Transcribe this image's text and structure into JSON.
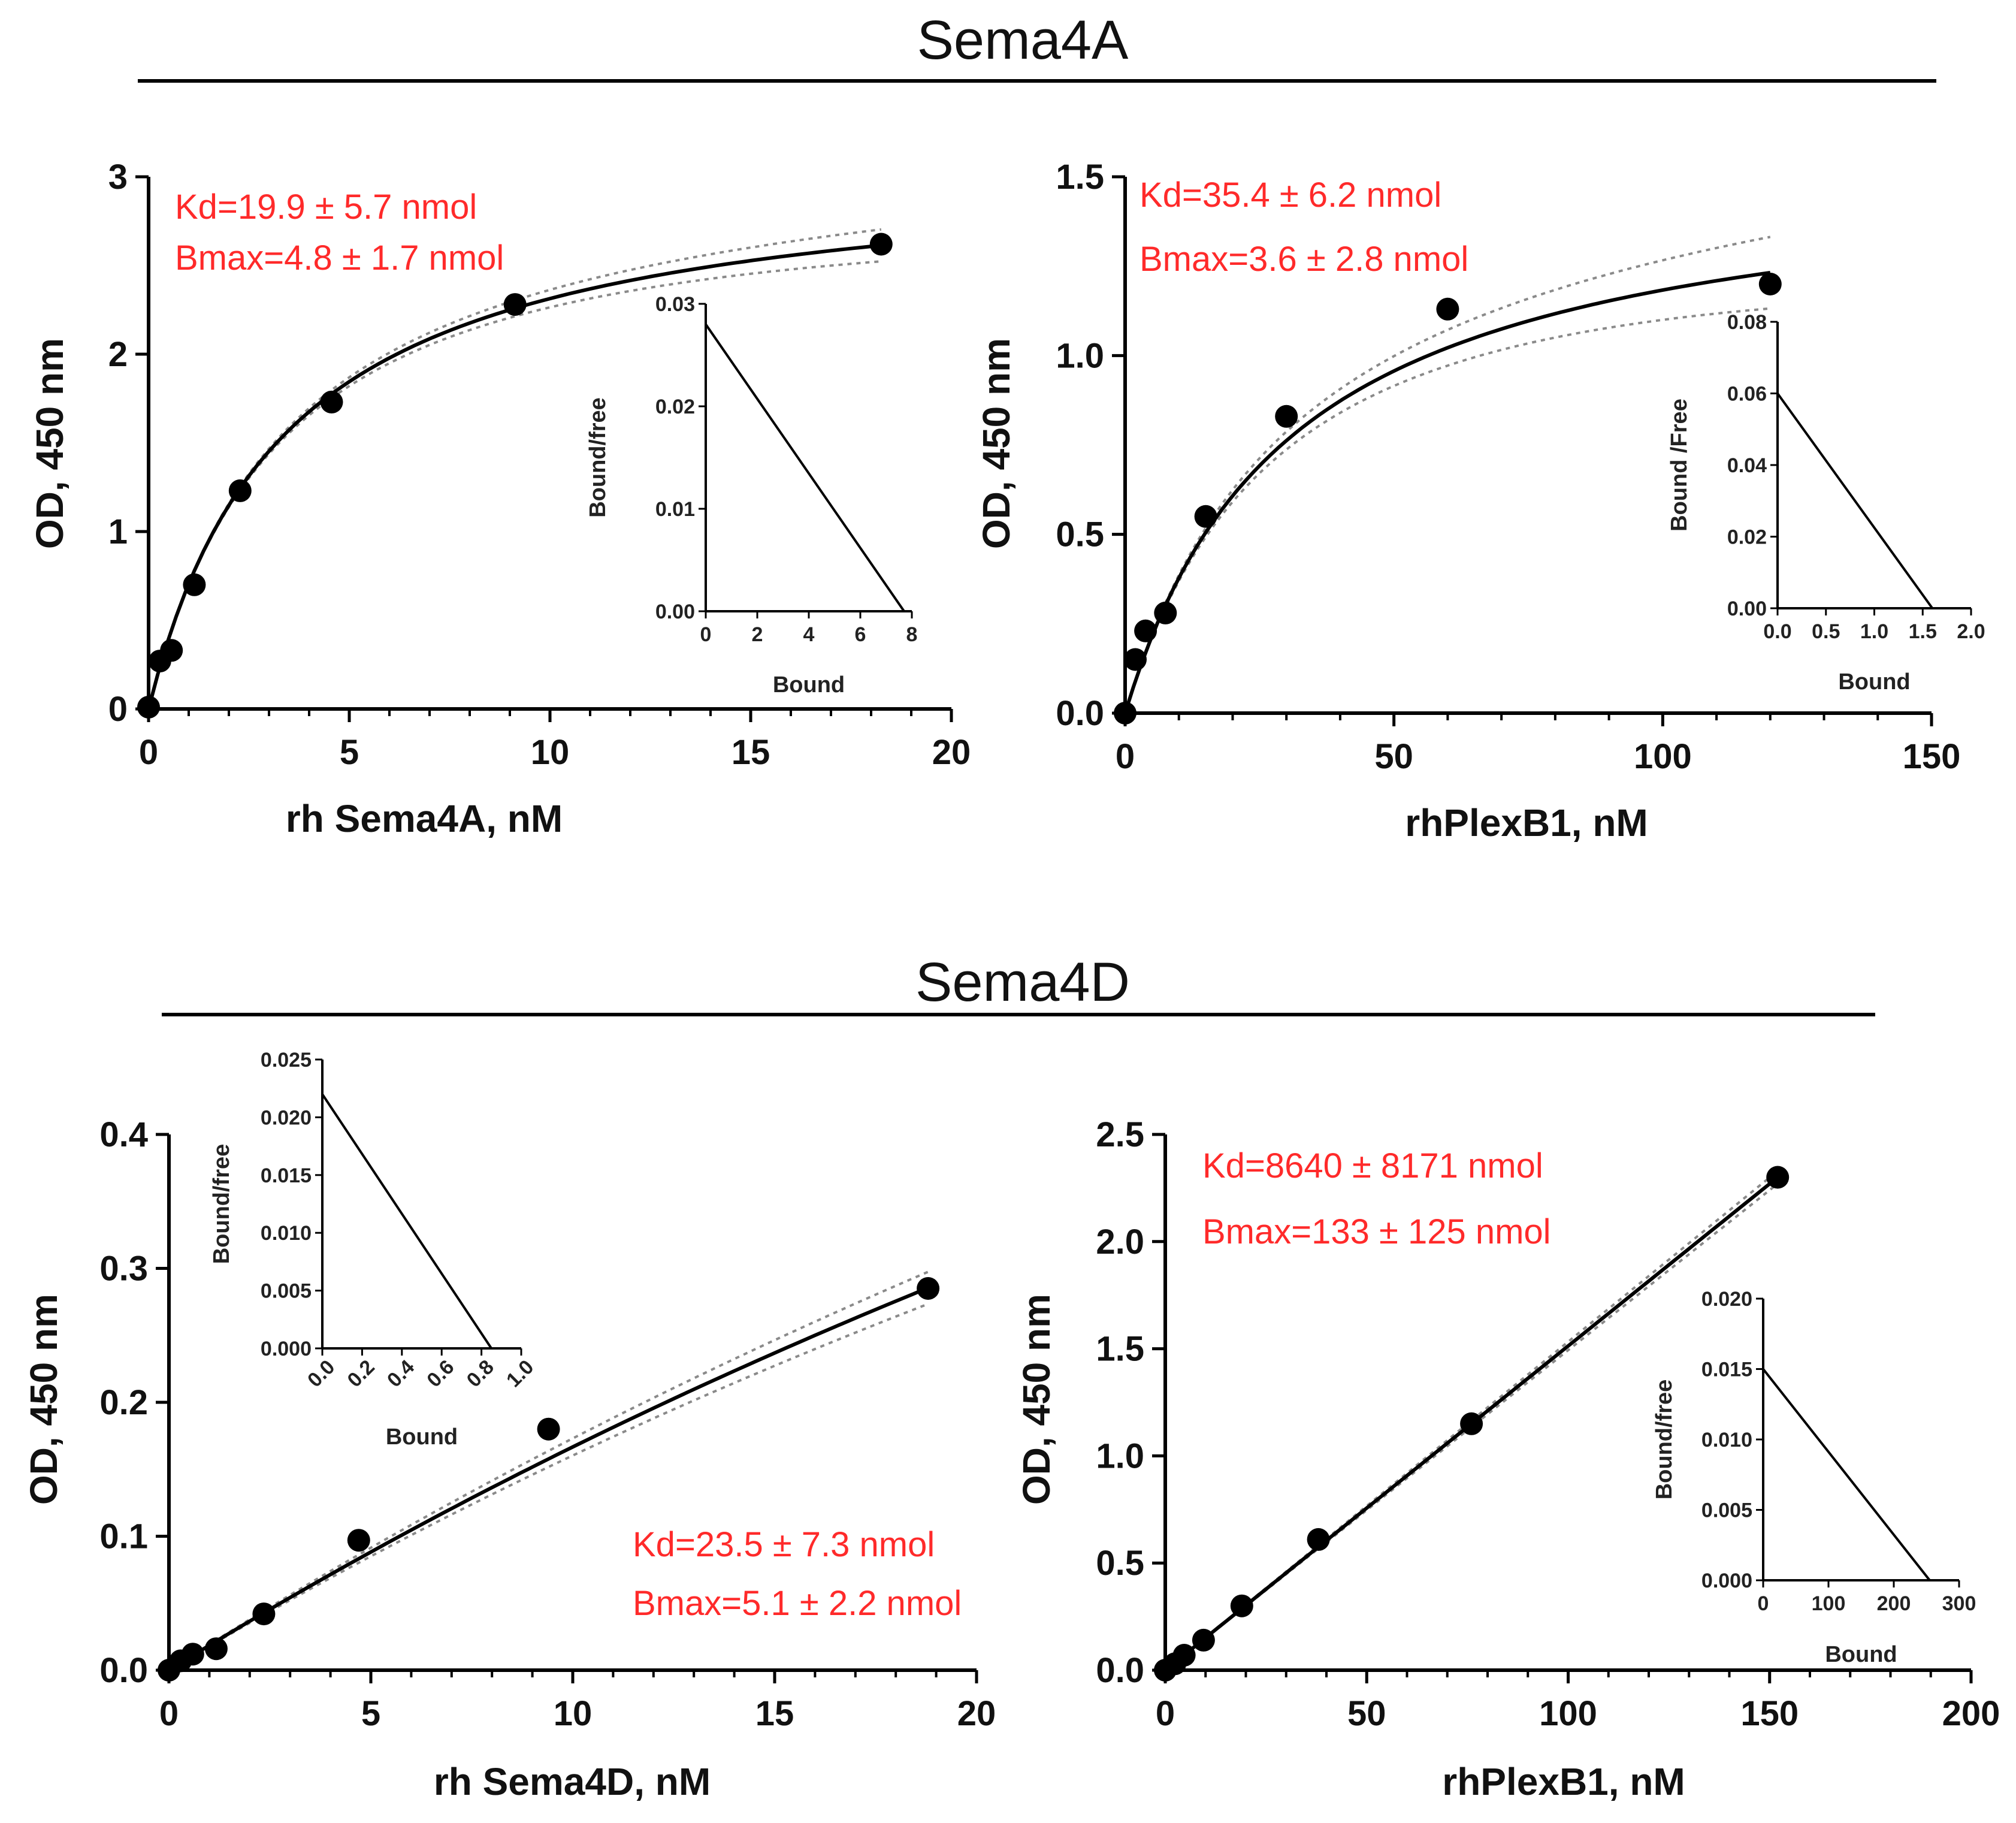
{
  "sections": [
    {
      "title": "Sema4A"
    },
    {
      "title": "Sema4D"
    }
  ],
  "chart_data": [
    {
      "type": "scatter",
      "panel": "sema4a-left",
      "xlabel": "rh Sema4A, nM",
      "ylabel": "OD, 450 nm",
      "xlim": [
        0,
        20
      ],
      "ylim": [
        0,
        3
      ],
      "xticks": [
        0,
        5,
        10,
        15,
        20
      ],
      "xticklabels": [
        "0",
        "5",
        "10",
        "15",
        "20"
      ],
      "yticks": [
        0,
        1,
        2,
        3
      ],
      "yticklabels": [
        "0",
        "1",
        "2",
        "3"
      ],
      "x": [
        0,
        0.28,
        0.57,
        1.14,
        2.28,
        4.56,
        9.13,
        18.25
      ],
      "y": [
        0.01,
        0.27,
        0.33,
        0.7,
        1.23,
        1.73,
        2.28,
        2.62
      ],
      "fit": {
        "model": "one-site specific binding",
        "Bmax": 3.1,
        "Kd": 3.4,
        "band": 0.09
      },
      "annotations": [
        "Kd=19.9 ± 5.7 nmol",
        "Bmax=4.8 ± 1.7 nmol"
      ],
      "inset": {
        "type": "line",
        "xlabel": "Bound",
        "ylabel": "Bound/free",
        "xlim": [
          0,
          8
        ],
        "ylim": [
          0,
          0.03
        ],
        "xticks": [
          0,
          2,
          4,
          6,
          8
        ],
        "xticklabels": [
          "0",
          "2",
          "4",
          "6",
          "8"
        ],
        "yticks": [
          0,
          0.01,
          0.02,
          0.03
        ],
        "yticklabels": [
          "0.00",
          "0.01",
          "0.02",
          "0.03"
        ],
        "line": [
          [
            0,
            0.028
          ],
          [
            7.7,
            0
          ]
        ]
      }
    },
    {
      "type": "scatter",
      "panel": "sema4a-right",
      "xlabel": "rhPlexB1, nM",
      "ylabel": "OD, 450 nm",
      "xlim": [
        0,
        150
      ],
      "ylim": [
        0,
        1.5
      ],
      "xticks": [
        0,
        50,
        100,
        150
      ],
      "xticklabels": [
        "0",
        "50",
        "100",
        "150"
      ],
      "yticks": [
        0,
        0.5,
        1.0,
        1.5
      ],
      "yticklabels": [
        "0.0",
        "0.5",
        "1.0",
        "1.5"
      ],
      "x": [
        0,
        1.9,
        3.8,
        7.5,
        15,
        30,
        60,
        120
      ],
      "y": [
        0.0,
        0.15,
        0.23,
        0.28,
        0.55,
        0.83,
        1.13,
        1.2
      ],
      "fit": {
        "model": "one-site specific binding",
        "Bmax": 1.55,
        "Kd": 31,
        "band": 0.1
      },
      "annotations": [
        "Kd=35.4 ± 6.2 nmol",
        "Bmax=3.6 ± 2.8 nmol"
      ],
      "inset": {
        "type": "line",
        "xlabel": "Bound",
        "ylabel": "Bound /Free",
        "xlim": [
          0,
          2
        ],
        "ylim": [
          0,
          0.08
        ],
        "xticks": [
          0,
          0.5,
          1.0,
          1.5,
          2.0
        ],
        "xticklabels": [
          "0.0",
          "0.5",
          "1.0",
          "1.5",
          "2.0"
        ],
        "yticks": [
          0,
          0.02,
          0.04,
          0.06,
          0.08
        ],
        "yticklabels": [
          "0.00",
          "0.02",
          "0.04",
          "0.06",
          "0.08"
        ],
        "line": [
          [
            0,
            0.06
          ],
          [
            1.6,
            0
          ]
        ]
      }
    },
    {
      "type": "scatter",
      "panel": "sema4d-left",
      "xlabel": "rh Sema4D, nM",
      "ylabel": "OD, 450 nm",
      "xlim": [
        0,
        20
      ],
      "ylim": [
        0,
        0.4
      ],
      "xticks": [
        0,
        5,
        10,
        15,
        20
      ],
      "xticklabels": [
        "0",
        "5",
        "10",
        "15",
        "20"
      ],
      "yticks": [
        0,
        0.1,
        0.2,
        0.3,
        0.4
      ],
      "yticklabels": [
        "0.0",
        "0.1",
        "0.2",
        "0.3",
        "0.4"
      ],
      "x": [
        0,
        0.29,
        0.59,
        1.17,
        2.35,
        4.7,
        9.4,
        18.8
      ],
      "y": [
        0.0,
        0.007,
        0.012,
        0.016,
        0.042,
        0.097,
        0.18,
        0.285
      ],
      "fit": {
        "model": "one-site specific binding",
        "Bmax": 1.5,
        "Kd": 80,
        "band": 0.012
      },
      "annotations": [
        "Kd=23.5 ± 7.3 nmol",
        "Bmax=5.1 ± 2.2 nmol"
      ],
      "inset": {
        "type": "line",
        "xlabel": "Bound",
        "ylabel": "Bound/free",
        "xlim": [
          0,
          1
        ],
        "ylim": [
          0,
          0.025
        ],
        "xticks": [
          0,
          0.2,
          0.4,
          0.6,
          0.8,
          1.0
        ],
        "xticklabels": [
          "0.0",
          "0.2",
          "0.4",
          "0.6",
          "0.8",
          "1.0"
        ],
        "yticks": [
          0,
          0.005,
          0.01,
          0.015,
          0.02,
          0.025
        ],
        "yticklabels": [
          "0.000",
          "0.005",
          "0.010",
          "0.015",
          "0.020",
          "0.025"
        ],
        "line": [
          [
            0,
            0.022
          ],
          [
            0.85,
            0
          ]
        ]
      }
    },
    {
      "type": "scatter",
      "panel": "sema4d-right",
      "xlabel": "rhPlexB1, nM",
      "ylabel": "OD, 450 nm",
      "xlim": [
        0,
        200
      ],
      "ylim": [
        0,
        2.5
      ],
      "xticks": [
        0,
        50,
        100,
        150,
        200
      ],
      "xticklabels": [
        "0",
        "50",
        "100",
        "150",
        "200"
      ],
      "yticks": [
        0,
        0.5,
        1.0,
        1.5,
        2.0,
        2.5
      ],
      "yticklabels": [
        "0.0",
        "0.5",
        "1.0",
        "1.5",
        "2.0",
        "2.5"
      ],
      "x": [
        0,
        2.4,
        4.7,
        9.5,
        19,
        38,
        76,
        152
      ],
      "y": [
        0.0,
        0.03,
        0.07,
        0.14,
        0.3,
        0.61,
        1.15,
        2.3
      ],
      "fit": {
        "model": "linear",
        "slope": 0.01513,
        "band": 0.03
      },
      "annotations": [
        "Kd=8640 ± 8171 nmol",
        "Bmax=133 ± 125 nmol"
      ],
      "inset": {
        "type": "line",
        "xlabel": "Bound",
        "ylabel": "Bound/free",
        "xlim": [
          0,
          300
        ],
        "ylim": [
          0,
          0.02
        ],
        "xticks": [
          0,
          100,
          200,
          300
        ],
        "xticklabels": [
          "0",
          "100",
          "200",
          "300"
        ],
        "yticks": [
          0,
          0.005,
          0.01,
          0.015,
          0.02
        ],
        "yticklabels": [
          "0.000",
          "0.005",
          "0.010",
          "0.015",
          "0.020"
        ],
        "line": [
          [
            0,
            0.015
          ],
          [
            255,
            0
          ]
        ]
      }
    }
  ]
}
